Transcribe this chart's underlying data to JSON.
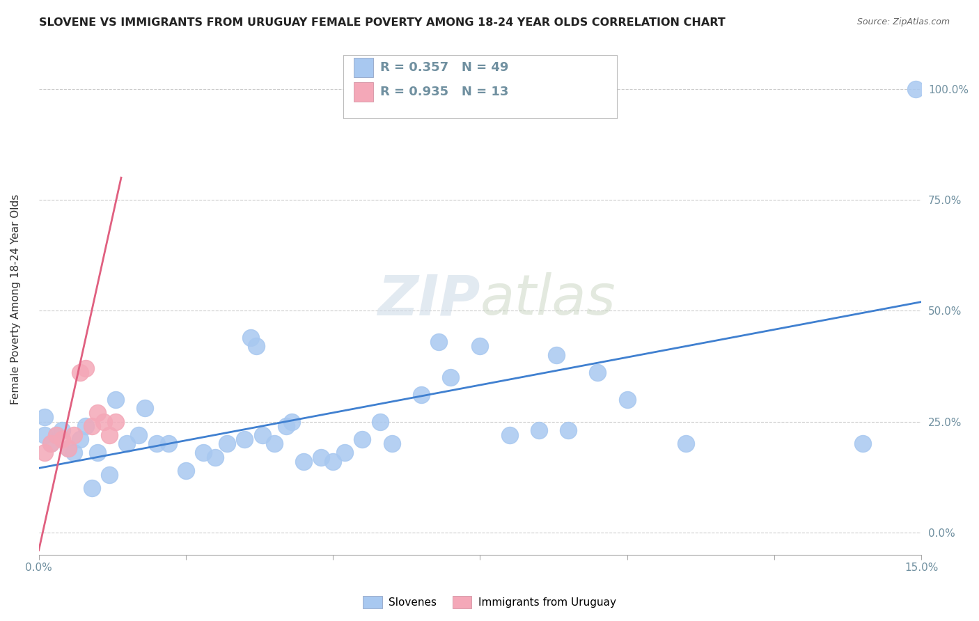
{
  "title": "SLOVENE VS IMMIGRANTS FROM URUGUAY FEMALE POVERTY AMONG 18-24 YEAR OLDS CORRELATION CHART",
  "source": "Source: ZipAtlas.com",
  "ylabel_label": "Female Poverty Among 18-24 Year Olds",
  "legend_labels": [
    "Slovenes",
    "Immigrants from Uruguay"
  ],
  "legend_r_blue": "R = 0.357",
  "legend_n_blue": "N = 49",
  "legend_r_pink": "R = 0.935",
  "legend_n_pink": "N = 13",
  "blue_color": "#A8C8F0",
  "pink_color": "#F4A8B8",
  "blue_line_color": "#4080D0",
  "pink_line_color": "#E06080",
  "watermark_zip": "ZIP",
  "watermark_atlas": "atlas",
  "xlim": [
    0.0,
    0.15
  ],
  "ylim": [
    -0.05,
    1.1
  ],
  "blue_scatter_x": [
    0.001,
    0.001,
    0.002,
    0.003,
    0.004,
    0.005,
    0.006,
    0.007,
    0.008,
    0.009,
    0.01,
    0.012,
    0.013,
    0.015,
    0.017,
    0.018,
    0.02,
    0.022,
    0.025,
    0.028,
    0.03,
    0.032,
    0.035,
    0.036,
    0.037,
    0.038,
    0.04,
    0.042,
    0.043,
    0.045,
    0.048,
    0.05,
    0.052,
    0.055,
    0.058,
    0.06,
    0.065,
    0.068,
    0.07,
    0.075,
    0.08,
    0.085,
    0.088,
    0.09,
    0.095,
    0.1,
    0.11,
    0.14,
    0.149
  ],
  "blue_scatter_y": [
    0.22,
    0.26,
    0.2,
    0.22,
    0.23,
    0.19,
    0.18,
    0.21,
    0.24,
    0.1,
    0.18,
    0.13,
    0.3,
    0.2,
    0.22,
    0.28,
    0.2,
    0.2,
    0.14,
    0.18,
    0.17,
    0.2,
    0.21,
    0.44,
    0.42,
    0.22,
    0.2,
    0.24,
    0.25,
    0.16,
    0.17,
    0.16,
    0.18,
    0.21,
    0.25,
    0.2,
    0.31,
    0.43,
    0.35,
    0.42,
    0.22,
    0.23,
    0.4,
    0.23,
    0.36,
    0.3,
    0.2,
    0.2,
    1.0
  ],
  "pink_scatter_x": [
    0.001,
    0.002,
    0.003,
    0.004,
    0.005,
    0.006,
    0.007,
    0.008,
    0.009,
    0.01,
    0.011,
    0.012,
    0.013
  ],
  "pink_scatter_y": [
    0.18,
    0.2,
    0.22,
    0.21,
    0.19,
    0.22,
    0.36,
    0.37,
    0.24,
    0.27,
    0.25,
    0.22,
    0.25
  ],
  "blue_trendline_x": [
    0.0,
    0.15
  ],
  "blue_trendline_y": [
    0.145,
    0.52
  ],
  "pink_trendline_x": [
    0.0,
    0.014
  ],
  "pink_trendline_y": [
    -0.04,
    0.8
  ],
  "ytick_positions": [
    0.0,
    0.25,
    0.5,
    0.75,
    1.0
  ],
  "ytick_labels": [
    "0.0%",
    "25.0%",
    "50.0%",
    "75.0%",
    "100.0%"
  ],
  "xtick_positions": [
    0.0,
    0.025,
    0.05,
    0.075,
    0.1,
    0.125,
    0.15
  ],
  "xtick_show_labels_at": [
    0.0,
    0.15
  ],
  "grid_color": "#CCCCCC",
  "tick_color": "#7090A0",
  "axis_label_color": "#333333",
  "title_fontsize": 11.5,
  "source_fontsize": 9,
  "tick_fontsize": 11
}
